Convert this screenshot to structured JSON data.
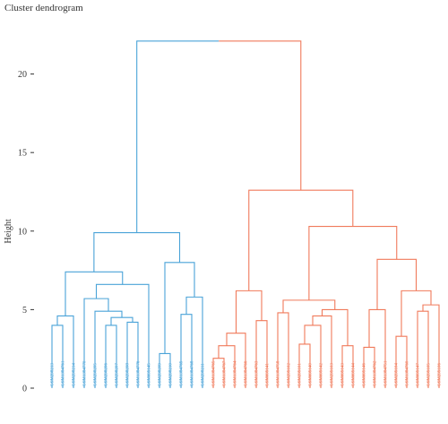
{
  "chart_data": {
    "type": "dendrogram",
    "title": "Cluster dendrogram",
    "ylabel": "Height",
    "ylim": [
      0,
      23
    ],
    "y_ticks": [
      0,
      5,
      10,
      15,
      20
    ],
    "colors": {
      "cluster1": "#4aa3d8",
      "cluster2": "#f07a5b"
    },
    "leaves": [
      {
        "label": "GSM298213",
        "cluster": 1
      },
      {
        "label": "GSM1384761",
        "cluster": 1
      },
      {
        "label": "GSM298214",
        "cluster": 1
      },
      {
        "label": "GSM1384770",
        "cluster": 1
      },
      {
        "label": "GSM298205",
        "cluster": 1
      },
      {
        "label": "GSM298206",
        "cluster": 1
      },
      {
        "label": "GSM298207",
        "cluster": 1
      },
      {
        "label": "GSM298208",
        "cluster": 1
      },
      {
        "label": "GSM1384776",
        "cluster": 1
      },
      {
        "label": "GSM699145",
        "cluster": 1
      },
      {
        "label": "GSM298209",
        "cluster": 1
      },
      {
        "label": "GSM298210",
        "cluster": 1
      },
      {
        "label": "GSM1384769",
        "cluster": 1
      },
      {
        "label": "GSM1384768",
        "cluster": 1
      },
      {
        "label": "GSM298211",
        "cluster": 1
      },
      {
        "label": "GSM1384765",
        "cluster": 2
      },
      {
        "label": "GSM1384767",
        "cluster": 2
      },
      {
        "label": "GSM1384764",
        "cluster": 2
      },
      {
        "label": "GSM1384766",
        "cluster": 2
      },
      {
        "label": "GSM1384763",
        "cluster": 2
      },
      {
        "label": "GSM699141",
        "cluster": 2
      },
      {
        "label": "GSM1384758",
        "cluster": 2
      },
      {
        "label": "GSM299102",
        "cluster": 2
      },
      {
        "label": "GSM299101",
        "cluster": 2
      },
      {
        "label": "GSM699140",
        "cluster": 2
      },
      {
        "label": "GSM699142",
        "cluster": 2
      },
      {
        "label": "GSM299103",
        "cluster": 2
      },
      {
        "label": "GSM699143",
        "cluster": 2
      },
      {
        "label": "GSM699144",
        "cluster": 2
      },
      {
        "label": "GSM699146",
        "cluster": 2
      },
      {
        "label": "GSM1384762",
        "cluster": 2
      },
      {
        "label": "GSM1384751",
        "cluster": 2
      },
      {
        "label": "GSM299104",
        "cluster": 2
      },
      {
        "label": "GSM1384760",
        "cluster": 2
      },
      {
        "label": "GSM699147",
        "cluster": 2
      },
      {
        "label": "GSM299105",
        "cluster": 2
      },
      {
        "label": "GSM299106",
        "cluster": 2
      }
    ],
    "merges": [
      {
        "id": "a1",
        "left": 0,
        "right": 1,
        "height": 4.0,
        "cluster": 1
      },
      {
        "id": "a2",
        "left": "a1",
        "right": 2,
        "height": 4.6,
        "cluster": 1
      },
      {
        "id": "a3",
        "left": 5,
        "right": 6,
        "height": 4.0,
        "cluster": 1
      },
      {
        "id": "a4",
        "left": 7,
        "right": 8,
        "height": 4.2,
        "cluster": 1
      },
      {
        "id": "a5",
        "left": "a3",
        "right": "a4",
        "height": 4.5,
        "cluster": 1
      },
      {
        "id": "a6",
        "left": 4,
        "right": "a5",
        "height": 4.9,
        "cluster": 1
      },
      {
        "id": "a7",
        "left": 3,
        "right": "a6",
        "height": 5.7,
        "cluster": 1
      },
      {
        "id": "a8",
        "left": "a7",
        "right": 9,
        "height": 6.6,
        "cluster": 1
      },
      {
        "id": "a9",
        "left": "a2",
        "right": "a8",
        "height": 7.4,
        "cluster": 1
      },
      {
        "id": "a10",
        "left": 10,
        "right": 11,
        "height": 2.2,
        "cluster": 1
      },
      {
        "id": "a11",
        "left": 12,
        "right": 13,
        "height": 4.7,
        "cluster": 1
      },
      {
        "id": "a12",
        "left": "a11",
        "right": 14,
        "height": 5.8,
        "cluster": 1
      },
      {
        "id": "a13",
        "left": "a10",
        "right": "a12",
        "height": 8.0,
        "cluster": 1
      },
      {
        "id": "a14",
        "left": "a9",
        "right": "a13",
        "height": 9.9,
        "cluster": 1
      },
      {
        "id": "b1",
        "left": 15,
        "right": 16,
        "height": 1.9,
        "cluster": 2
      },
      {
        "id": "b2",
        "left": "b1",
        "right": 17,
        "height": 2.7,
        "cluster": 2
      },
      {
        "id": "b3",
        "left": "b2",
        "right": 18,
        "height": 3.5,
        "cluster": 2
      },
      {
        "id": "b4",
        "left": 19,
        "right": 20,
        "height": 4.3,
        "cluster": 2
      },
      {
        "id": "b5",
        "left": "b3",
        "right": "b4",
        "height": 6.2,
        "cluster": 2
      },
      {
        "id": "b6",
        "left": 21,
        "right": 22,
        "height": 4.8,
        "cluster": 2
      },
      {
        "id": "b7",
        "left": 23,
        "right": 24,
        "height": 2.8,
        "cluster": 2
      },
      {
        "id": "b8",
        "left": "b7",
        "right": 25,
        "height": 4.0,
        "cluster": 2
      },
      {
        "id": "b9",
        "left": "b8",
        "right": 26,
        "height": 4.6,
        "cluster": 2
      },
      {
        "id": "b10",
        "left": 27,
        "right": 28,
        "height": 2.7,
        "cluster": 2
      },
      {
        "id": "b11",
        "left": "b9",
        "right": "b10",
        "height": 5.0,
        "cluster": 2
      },
      {
        "id": "b12",
        "left": "b6",
        "right": "b11",
        "height": 5.6,
        "cluster": 2
      },
      {
        "id": "b13",
        "left": 29,
        "right": 30,
        "height": 2.6,
        "cluster": 2
      },
      {
        "id": "b14",
        "left": "b13",
        "right": 31,
        "height": 5.0,
        "cluster": 2
      },
      {
        "id": "b15",
        "left": 32,
        "right": 33,
        "height": 3.3,
        "cluster": 2
      },
      {
        "id": "b16",
        "left": 34,
        "right": 35,
        "height": 4.9,
        "cluster": 2
      },
      {
        "id": "b17",
        "left": "b16",
        "right": 36,
        "height": 5.3,
        "cluster": 2
      },
      {
        "id": "b18",
        "left": "b15",
        "right": "b17",
        "height": 6.2,
        "cluster": 2
      },
      {
        "id": "b19",
        "left": "b14",
        "right": "b18",
        "height": 8.2,
        "cluster": 2
      },
      {
        "id": "b20",
        "left": "b12",
        "right": "b19",
        "height": 10.3,
        "cluster": 2
      },
      {
        "id": "b21",
        "left": "b20",
        "right": null,
        "height": 11.9,
        "cluster": 2
      },
      {
        "id": "b22",
        "left": "b5",
        "right": "b21",
        "height": 12.6,
        "cluster": 2
      },
      {
        "id": "root",
        "left": "a14",
        "right": "b22",
        "height": 22.1,
        "cluster": 0
      }
    ]
  }
}
